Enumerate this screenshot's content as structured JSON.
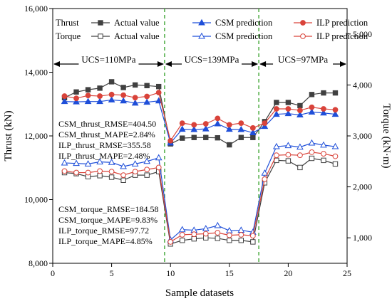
{
  "chart_data": {
    "type": "line",
    "xlabel": "Sample datasets",
    "ylabel_left": "Thrust (kN)",
    "ylabel_right": "Torque (kN·m)",
    "xlim": [
      0,
      25
    ],
    "ylim_left": [
      8000,
      16000
    ],
    "ylim_right": [
      500,
      5500
    ],
    "x_ticks": [
      "0",
      "5",
      "10",
      "15",
      "20",
      "25"
    ],
    "y_ticks_left": [
      "8,000",
      "10,000",
      "12,000",
      "14,000",
      "16,000"
    ],
    "y_ticks_right": [
      "1,000",
      "2,000",
      "3,000",
      "4,000",
      "5,000"
    ],
    "x": [
      1,
      2,
      3,
      4,
      5,
      6,
      7,
      8,
      9,
      10,
      11,
      12,
      13,
      14,
      15,
      16,
      17,
      18,
      19,
      20,
      21,
      22,
      23,
      24
    ],
    "series": [
      {
        "group": "Thrust",
        "name": "Actual value",
        "axis": "left",
        "color": "#404040",
        "marker": "square-filled",
        "values": [
          13200,
          13380,
          13450,
          13500,
          13700,
          13520,
          13600,
          13580,
          13550,
          11750,
          11930,
          11950,
          11950,
          11940,
          11720,
          11950,
          11950,
          12450,
          13050,
          13050,
          12950,
          13300,
          13350,
          13350
        ]
      },
      {
        "group": "Thrust",
        "name": "CSM prediction",
        "axis": "left",
        "color": "#1f4fd9",
        "marker": "triangle-filled",
        "values": [
          13080,
          13070,
          13080,
          13080,
          13130,
          13100,
          13030,
          13060,
          13100,
          11780,
          12210,
          12200,
          12220,
          12380,
          12210,
          12200,
          12100,
          12300,
          12680,
          12700,
          12660,
          12750,
          12720,
          12680
        ]
      },
      {
        "group": "Thrust",
        "name": "ILP prediction",
        "axis": "left",
        "color": "#d9433a",
        "marker": "circle-filled",
        "values": [
          13250,
          13180,
          13270,
          13250,
          13300,
          13280,
          13200,
          13240,
          13360,
          11850,
          12400,
          12350,
          12380,
          12550,
          12350,
          12400,
          12250,
          12400,
          12850,
          12850,
          12800,
          12900,
          12850,
          12820
        ]
      },
      {
        "group": "Torque",
        "name": "Actual value",
        "axis": "right",
        "color": "#404040",
        "marker": "square-open",
        "values": [
          2280,
          2260,
          2200,
          2220,
          2190,
          2130,
          2230,
          2230,
          2300,
          880,
          950,
          980,
          1000,
          990,
          950,
          950,
          920,
          2080,
          2520,
          2510,
          2380,
          2560,
          2520,
          2450
        ]
      },
      {
        "group": "Torque",
        "name": "CSM prediction",
        "axis": "right",
        "color": "#1f4fd9",
        "marker": "triangle-open",
        "values": [
          2470,
          2460,
          2450,
          2490,
          2480,
          2400,
          2450,
          2500,
          2570,
          960,
          1160,
          1150,
          1180,
          1240,
          1140,
          1150,
          1110,
          2270,
          2790,
          2810,
          2780,
          2860,
          2820,
          2790
        ]
      },
      {
        "group": "Torque",
        "name": "ILP prediction",
        "axis": "right",
        "color": "#d9433a",
        "marker": "circle-open",
        "values": [
          2310,
          2280,
          2280,
          2310,
          2300,
          2230,
          2300,
          2340,
          2380,
          920,
          1060,
          1070,
          1080,
          1100,
          1050,
          1060,
          1040,
          2150,
          2620,
          2630,
          2620,
          2680,
          2650,
          2600
        ]
      }
    ],
    "legend": {
      "placement": "top",
      "rows": [
        {
          "title": "Thrust",
          "entries": [
            "Actual value",
            "CSM prediction",
            "ILP prediction"
          ]
        },
        {
          "title": "Torque",
          "entries": [
            "Actual value",
            "CSM prediction",
            "ILP prediction"
          ]
        }
      ]
    },
    "regions": [
      {
        "label": "UCS=110MPa",
        "from": 0,
        "to": 9.5
      },
      {
        "label": "UCS=139MPa",
        "from": 9.5,
        "to": 17.5
      },
      {
        "label": "UCS=97MPa",
        "from": 17.5,
        "to": 25
      }
    ],
    "separators": [
      9.5,
      17.5
    ],
    "annotations": {
      "thrust_metrics": [
        "CSM_thrust_RMSE=404.50",
        "CSM_thrust_MAPE=2.84%",
        "ILP_thrust_RMSE=355.58",
        "ILP_thrust_MAPE=2.48%"
      ],
      "torque_metrics": [
        "CSM_torque_RMSE=184.58",
        "CSM_torque_MAPE=9.83%",
        "ILP_torque_RMSE=97.72",
        "ILP_torque_MAPE=4.85%"
      ]
    },
    "grid": false
  }
}
